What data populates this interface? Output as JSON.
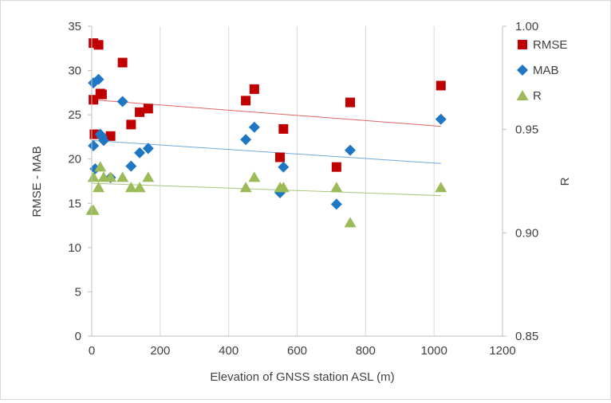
{
  "chart_data": {
    "type": "scatter",
    "title": "",
    "xlabel": "Elevation of GNSS station ASL (m)",
    "ylabel": "RMSE - MAB",
    "y2label": "R",
    "xlim": [
      0,
      1200
    ],
    "ylim": [
      0,
      35
    ],
    "y2lim": [
      0.85,
      1.0
    ],
    "xticks": [
      0,
      200,
      400,
      600,
      800,
      1000,
      1200
    ],
    "yticks": [
      0,
      5,
      10,
      15,
      20,
      25,
      30,
      35
    ],
    "y2ticks": [
      "0.85",
      "0.90",
      "0.95",
      "1.00"
    ],
    "grid": "vertical",
    "legend": "top-right",
    "series": [
      {
        "name": "RMSE",
        "axis": "left",
        "marker": "square",
        "color": "#c00000",
        "x": [
          5,
          5,
          8,
          20,
          25,
          30,
          55,
          90,
          115,
          140,
          165,
          450,
          475,
          550,
          560,
          715,
          755,
          1020
        ],
        "y": [
          33.1,
          26.7,
          22.8,
          32.9,
          27.4,
          27.3,
          22.6,
          30.9,
          23.9,
          25.3,
          25.7,
          26.6,
          27.9,
          20.2,
          23.4,
          19.1,
          26.4,
          28.3
        ]
      },
      {
        "name": "MAB",
        "axis": "left",
        "marker": "diamond",
        "color": "#1f77c4",
        "x": [
          5,
          5,
          10,
          20,
          25,
          30,
          35,
          55,
          90,
          115,
          140,
          165,
          450,
          475,
          550,
          560,
          715,
          755,
          1020
        ],
        "y": [
          28.6,
          21.5,
          18.9,
          29.0,
          22.8,
          22.5,
          22.1,
          17.9,
          26.5,
          19.2,
          20.7,
          21.2,
          22.2,
          23.6,
          16.2,
          19.1,
          14.9,
          21.0,
          24.5
        ]
      },
      {
        "name": "R",
        "axis": "right",
        "marker": "triangle",
        "color": "#9bbb59",
        "x": [
          0,
          5,
          5,
          20,
          25,
          35,
          55,
          90,
          115,
          140,
          165,
          450,
          475,
          550,
          560,
          715,
          755,
          1020
        ],
        "y": [
          0.911,
          0.911,
          0.927,
          0.922,
          0.932,
          0.927,
          0.927,
          0.927,
          0.922,
          0.922,
          0.927,
          0.922,
          0.927,
          0.922,
          0.922,
          0.922,
          0.905,
          0.922
        ]
      }
    ],
    "trendlines": [
      {
        "series": "RMSE",
        "axis": "left",
        "x": [
          0,
          1020
        ],
        "y": [
          26.7,
          23.7
        ],
        "color": "#e06666"
      },
      {
        "series": "MAB",
        "axis": "left",
        "x": [
          0,
          1020
        ],
        "y": [
          22.1,
          19.5
        ],
        "color": "#6fa8dc"
      },
      {
        "series": "R",
        "axis": "right",
        "x": [
          0,
          1020
        ],
        "y": [
          0.924,
          0.918
        ],
        "color": "#a9c47f"
      }
    ]
  }
}
